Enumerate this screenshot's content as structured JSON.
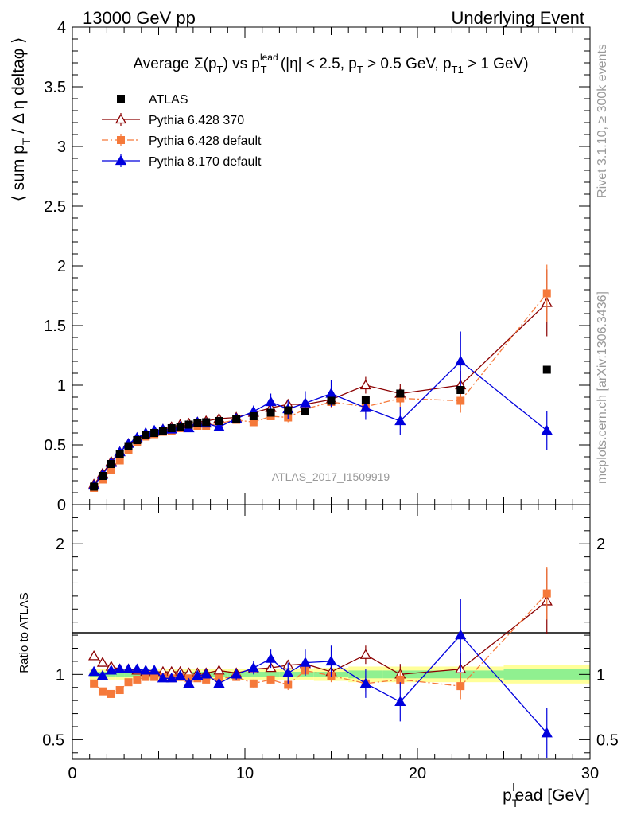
{
  "header": {
    "left": "13000 GeV pp",
    "right": "Underlying Event"
  },
  "side_labels": {
    "rivet": "Rivet 3.1.10, ≥ 300k events",
    "mcplots": "mcplots.cern.ch [arXiv:1306.3436]"
  },
  "watermark": "ATLAS_2017_I1509919",
  "chart_data": [
    {
      "type": "scatter",
      "title": "Average Σ(p_T) vs p_T^lead (|η| < 2.5, p_T > 0.5 GeV, p_T1 > 1 GeV)",
      "title_parts": {
        "a": "Average",
        "b": "Σ(p",
        "c": "T",
        "d": ") vs p",
        "e": "lead",
        "f": "T",
        "g": " (|η| < 2.5, p",
        "h": "T",
        "i": " > 0.5 GeV, p",
        "j": "T1",
        "k": " > 1 GeV)"
      },
      "ylabel": "⟨ sum p_T / Δ η deltaφ ⟩",
      "ylabel_parts": {
        "a": "⟨ sum p",
        "b": "T",
        "c": " / Δ η deltaφ ⟩"
      },
      "xlim": [
        0,
        30
      ],
      "ylim": [
        0,
        4
      ],
      "yticks": [
        0,
        0.5,
        1,
        1.5,
        2,
        2.5,
        3,
        3.5,
        4
      ],
      "ytick_labels": [
        "0",
        "0.5",
        "1",
        "1.5",
        "2",
        "2.5",
        "3",
        "3.5",
        "4"
      ],
      "legend_position": "top-left",
      "series": [
        {
          "name": "ATLAS",
          "color": "#000000",
          "marker": "square",
          "x": [
            1.25,
            1.75,
            2.25,
            2.75,
            3.25,
            3.75,
            4.25,
            4.75,
            5.25,
            5.75,
            6.25,
            6.75,
            7.25,
            7.75,
            8.5,
            9.5,
            10.5,
            11.5,
            12.5,
            13.5,
            15,
            17,
            19,
            22.5,
            27.5
          ],
          "y": [
            0.15,
            0.24,
            0.34,
            0.42,
            0.49,
            0.54,
            0.58,
            0.6,
            0.62,
            0.64,
            0.65,
            0.67,
            0.68,
            0.69,
            0.7,
            0.72,
            0.74,
            0.77,
            0.79,
            0.78,
            0.87,
            0.88,
            0.93,
            0.96,
            1.13
          ]
        },
        {
          "name": "Pythia 6.428 370",
          "color": "#8b0000",
          "marker": "open-triangle",
          "x": [
            1.25,
            1.75,
            2.25,
            2.75,
            3.25,
            3.75,
            4.25,
            4.75,
            5.25,
            5.75,
            6.25,
            6.75,
            7.25,
            7.75,
            8.5,
            9.5,
            10.5,
            11.5,
            12.5,
            13.5,
            15,
            17,
            19,
            22.5,
            27.5
          ],
          "y": [
            0.17,
            0.26,
            0.36,
            0.44,
            0.51,
            0.55,
            0.59,
            0.61,
            0.63,
            0.65,
            0.67,
            0.68,
            0.69,
            0.7,
            0.72,
            0.73,
            0.77,
            0.81,
            0.84,
            0.84,
            0.88,
            1.0,
            0.93,
            1.0,
            1.69
          ],
          "err": [
            0.01,
            0.01,
            0.01,
            0.01,
            0.01,
            0.01,
            0.01,
            0.01,
            0.01,
            0.01,
            0.01,
            0.01,
            0.01,
            0.01,
            0.02,
            0.02,
            0.03,
            0.03,
            0.04,
            0.04,
            0.05,
            0.07,
            0.08,
            0.12,
            0.28
          ]
        },
        {
          "name": "Pythia 6.428 default",
          "color": "#f5793a",
          "marker": "square",
          "x": [
            1.25,
            1.75,
            2.25,
            2.75,
            3.25,
            3.75,
            4.25,
            4.75,
            5.25,
            5.75,
            6.25,
            6.75,
            7.25,
            7.75,
            8.5,
            9.5,
            10.5,
            11.5,
            12.5,
            13.5,
            15,
            17,
            19,
            22.5,
            27.5
          ],
          "y": [
            0.14,
            0.21,
            0.29,
            0.37,
            0.46,
            0.52,
            0.57,
            0.59,
            0.61,
            0.62,
            0.64,
            0.65,
            0.66,
            0.66,
            0.68,
            0.71,
            0.69,
            0.74,
            0.73,
            0.8,
            0.86,
            0.82,
            0.89,
            0.87,
            1.77
          ],
          "err": [
            0.01,
            0.01,
            0.01,
            0.01,
            0.01,
            0.01,
            0.01,
            0.01,
            0.01,
            0.01,
            0.01,
            0.01,
            0.01,
            0.01,
            0.02,
            0.02,
            0.03,
            0.03,
            0.04,
            0.04,
            0.05,
            0.06,
            0.07,
            0.1,
            0.24
          ]
        },
        {
          "name": "Pythia 8.170 default",
          "color": "#0000dd",
          "marker": "triangle",
          "x": [
            1.25,
            1.75,
            2.25,
            2.75,
            3.25,
            3.75,
            4.25,
            4.75,
            5.25,
            5.75,
            6.25,
            6.75,
            7.25,
            7.75,
            8.5,
            9.5,
            10.5,
            11.5,
            12.5,
            13.5,
            15,
            17,
            19,
            22.5,
            27.5
          ],
          "y": [
            0.16,
            0.25,
            0.35,
            0.44,
            0.51,
            0.56,
            0.6,
            0.62,
            0.63,
            0.63,
            0.65,
            0.64,
            0.69,
            0.68,
            0.65,
            0.72,
            0.78,
            0.86,
            0.8,
            0.85,
            0.93,
            0.81,
            0.7,
            1.2,
            0.62
          ],
          "err": [
            0.01,
            0.01,
            0.01,
            0.01,
            0.01,
            0.01,
            0.01,
            0.01,
            0.01,
            0.01,
            0.01,
            0.02,
            0.02,
            0.03,
            0.03,
            0.04,
            0.05,
            0.07,
            0.08,
            0.1,
            0.11,
            0.1,
            0.12,
            0.25,
            0.16
          ]
        }
      ]
    },
    {
      "type": "scatter",
      "ylabel": "Ratio to ATLAS",
      "xlabel": "p_T^lead [GeV]",
      "xlabel_parts": {
        "a": "p",
        "b": "T",
        "c": "l",
        "d": "ead [GeV]"
      },
      "xlim": [
        0,
        30
      ],
      "xticks": [
        0,
        10,
        20,
        30
      ],
      "xtick_labels": [
        "0",
        "10",
        "20",
        "30"
      ],
      "ylim": [
        0.35,
        2.3
      ],
      "yticks": [
        0.5,
        1,
        2
      ],
      "ytick_labels": [
        "0.5",
        "1",
        "2"
      ],
      "uncertainty_bands": {
        "x_edges": [
          1,
          1.5,
          2,
          2.5,
          3,
          3.5,
          4,
          4.5,
          5,
          5.5,
          6,
          6.5,
          7,
          7.5,
          8,
          9,
          10,
          11,
          12,
          13,
          14,
          16,
          18,
          20,
          25,
          30
        ],
        "stat": [
          0.02,
          0.02,
          0.02,
          0.02,
          0.02,
          0.02,
          0.02,
          0.02,
          0.02,
          0.02,
          0.02,
          0.02,
          0.02,
          0.02,
          0.02,
          0.02,
          0.02,
          0.02,
          0.02,
          0.02,
          0.02,
          0.03,
          0.03,
          0.03,
          0.04
        ],
        "total": [
          0.04,
          0.04,
          0.04,
          0.04,
          0.04,
          0.04,
          0.04,
          0.04,
          0.04,
          0.04,
          0.04,
          0.04,
          0.04,
          0.04,
          0.04,
          0.04,
          0.04,
          0.04,
          0.04,
          0.04,
          0.05,
          0.06,
          0.06,
          0.06,
          0.07
        ],
        "stat_color": "#90f090",
        "total_color": "#ffff99"
      },
      "series": [
        {
          "name": "Pythia 6.428 370",
          "color": "#8b0000",
          "marker": "open-triangle",
          "x": [
            1.25,
            1.75,
            2.25,
            2.75,
            3.25,
            3.75,
            4.25,
            4.75,
            5.25,
            5.75,
            6.25,
            6.75,
            7.25,
            7.75,
            8.5,
            9.5,
            10.5,
            11.5,
            12.5,
            13.5,
            15,
            17,
            19,
            22.5,
            27.5
          ],
          "y": [
            1.14,
            1.09,
            1.06,
            1.04,
            1.04,
            1.03,
            1.02,
            1.02,
            1.02,
            1.02,
            1.02,
            1.01,
            1.01,
            1.01,
            1.03,
            1.01,
            1.04,
            1.05,
            1.07,
            1.08,
            1.02,
            1.15,
            1.0,
            1.04,
            1.56
          ],
          "err": [
            0.01,
            0.01,
            0.01,
            0.01,
            0.01,
            0.01,
            0.01,
            0.01,
            0.01,
            0.01,
            0.01,
            0.01,
            0.01,
            0.01,
            0.02,
            0.02,
            0.03,
            0.03,
            0.04,
            0.04,
            0.05,
            0.07,
            0.08,
            0.12,
            0.25
          ]
        },
        {
          "name": "Pythia 6.428 default",
          "color": "#f5793a",
          "marker": "square",
          "x": [
            1.25,
            1.75,
            2.25,
            2.75,
            3.25,
            3.75,
            4.25,
            4.75,
            5.25,
            5.75,
            6.25,
            6.75,
            7.25,
            7.75,
            8.5,
            9.5,
            10.5,
            11.5,
            12.5,
            13.5,
            15,
            17,
            19,
            22.5,
            27.5
          ],
          "y": [
            0.93,
            0.87,
            0.85,
            0.88,
            0.94,
            0.96,
            0.98,
            0.98,
            0.98,
            0.97,
            0.98,
            0.97,
            0.97,
            0.96,
            0.97,
            0.98,
            0.93,
            0.96,
            0.92,
            1.03,
            0.99,
            0.93,
            0.96,
            0.91,
            1.62
          ],
          "err": [
            0.01,
            0.01,
            0.01,
            0.01,
            0.01,
            0.01,
            0.01,
            0.01,
            0.01,
            0.01,
            0.01,
            0.01,
            0.01,
            0.01,
            0.02,
            0.02,
            0.03,
            0.03,
            0.04,
            0.04,
            0.05,
            0.06,
            0.07,
            0.1,
            0.2
          ]
        },
        {
          "name": "Pythia 8.170 default",
          "color": "#0000dd",
          "marker": "triangle",
          "x": [
            1.25,
            1.75,
            2.25,
            2.75,
            3.25,
            3.75,
            4.25,
            4.75,
            5.25,
            5.75,
            6.25,
            6.75,
            7.25,
            7.75,
            8.5,
            9.5,
            10.5,
            11.5,
            12.5,
            13.5,
            15,
            17,
            19,
            22.5,
            27.5
          ],
          "y": [
            1.02,
            0.99,
            1.03,
            1.04,
            1.04,
            1.04,
            1.03,
            1.03,
            0.97,
            0.97,
            0.99,
            0.93,
            0.99,
            1.0,
            0.93,
            1.0,
            1.05,
            1.12,
            1.01,
            1.09,
            1.1,
            0.93,
            0.79,
            1.3,
            0.55
          ],
          "err": [
            0.01,
            0.01,
            0.01,
            0.01,
            0.01,
            0.01,
            0.01,
            0.01,
            0.01,
            0.01,
            0.01,
            0.02,
            0.02,
            0.03,
            0.03,
            0.04,
            0.05,
            0.07,
            0.08,
            0.1,
            0.12,
            0.11,
            0.15,
            0.28,
            0.19
          ]
        }
      ]
    }
  ]
}
